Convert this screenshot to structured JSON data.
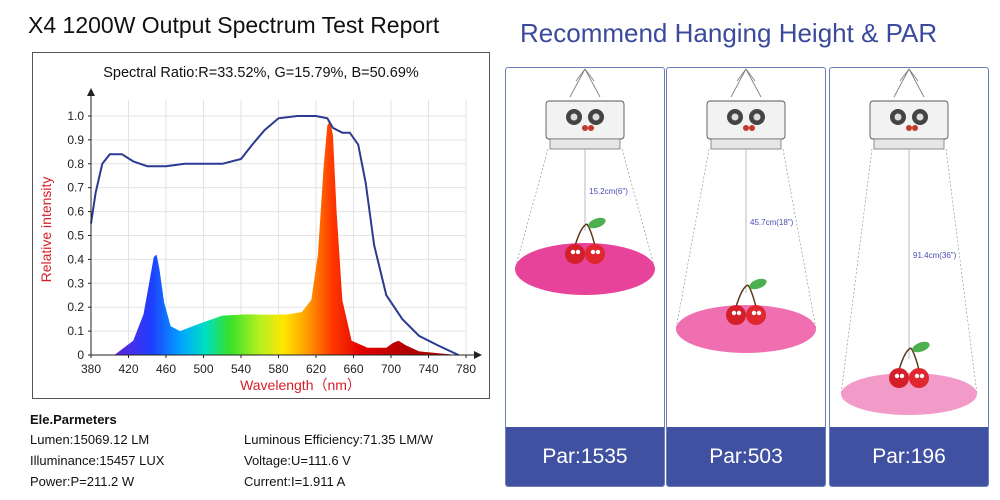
{
  "left_title": "X4 1200W Output Spectrum Test Report",
  "right_title": "Recommend Hanging Height & PAR",
  "chart_data": {
    "type": "area",
    "title": "Spectral Ratio:R=33.52%, G=15.79%, B=50.69%",
    "xlabel": "Wavelength（nm）",
    "ylabel": "Relative intensity",
    "xlim": [
      380,
      780
    ],
    "ylim": [
      0,
      1.05
    ],
    "x_ticks": [
      380,
      420,
      460,
      500,
      540,
      580,
      620,
      660,
      700,
      740,
      780
    ],
    "y_ticks": [
      0,
      0.1,
      0.2,
      0.3,
      0.4,
      0.5,
      0.6,
      0.7,
      0.8,
      0.9,
      1.0
    ],
    "grid": true,
    "series": [
      {
        "type": "area",
        "color_mode": "spectrum",
        "points": [
          [
            405,
            0.0
          ],
          [
            425,
            0.06
          ],
          [
            436,
            0.17
          ],
          [
            442,
            0.3
          ],
          [
            447,
            0.41
          ],
          [
            450,
            0.42
          ],
          [
            453,
            0.36
          ],
          [
            458,
            0.22
          ],
          [
            465,
            0.12
          ],
          [
            475,
            0.1
          ],
          [
            495,
            0.13
          ],
          [
            520,
            0.165
          ],
          [
            545,
            0.17
          ],
          [
            570,
            0.168
          ],
          [
            590,
            0.17
          ],
          [
            605,
            0.18
          ],
          [
            615,
            0.23
          ],
          [
            622,
            0.42
          ],
          [
            628,
            0.78
          ],
          [
            632,
            0.96
          ],
          [
            635,
            0.98
          ],
          [
            638,
            0.92
          ],
          [
            642,
            0.6
          ],
          [
            648,
            0.23
          ],
          [
            658,
            0.06
          ],
          [
            675,
            0.03
          ],
          [
            695,
            0.03
          ],
          [
            702,
            0.05
          ],
          [
            708,
            0.06
          ],
          [
            716,
            0.04
          ],
          [
            730,
            0.015
          ],
          [
            770,
            0.0
          ]
        ]
      },
      {
        "type": "line",
        "color": "#2b3990",
        "points": [
          [
            380,
            0.55
          ],
          [
            385,
            0.68
          ],
          [
            392,
            0.8
          ],
          [
            400,
            0.84
          ],
          [
            413,
            0.84
          ],
          [
            425,
            0.81
          ],
          [
            440,
            0.79
          ],
          [
            460,
            0.79
          ],
          [
            480,
            0.8
          ],
          [
            500,
            0.8
          ],
          [
            520,
            0.8
          ],
          [
            540,
            0.82
          ],
          [
            552,
            0.88
          ],
          [
            565,
            0.94
          ],
          [
            580,
            0.99
          ],
          [
            600,
            1.0
          ],
          [
            620,
            1.0
          ],
          [
            632,
            0.99
          ],
          [
            638,
            0.95
          ],
          [
            648,
            0.93
          ],
          [
            656,
            0.93
          ],
          [
            665,
            0.88
          ],
          [
            673,
            0.72
          ],
          [
            682,
            0.46
          ],
          [
            695,
            0.25
          ],
          [
            712,
            0.15
          ],
          [
            730,
            0.08
          ],
          [
            750,
            0.04
          ],
          [
            772,
            0.0
          ]
        ]
      }
    ]
  },
  "ele_params": {
    "title": "Ele.Parmeters",
    "lumen": "Lumen:15069.12 LM",
    "luminous_efficiency": "Luminous Efficiency:71.35 LM/W",
    "illuminance": "Illuminance:15457 LUX",
    "voltage": "Voltage:U=111.6 V",
    "power": "Power:P=211.2 W",
    "current": "Current:I=1.911 A"
  },
  "panels": [
    {
      "height_label": "15.2cm(6\")",
      "par": "Par:1535"
    },
    {
      "height_label": "45.7cm(18\")",
      "par": "Par:503"
    },
    {
      "height_label": "91.4cm(36\")",
      "par": "Par:196"
    }
  ],
  "colors": {
    "accent": "#3f51a0",
    "title_blue": "#3c4a9c",
    "line_blue": "#2b3990",
    "axis_label_red": "#d4202a",
    "panel_border": "#6d7db8"
  },
  "icons": [
    "grow-light-icon",
    "cherry-icon"
  ]
}
